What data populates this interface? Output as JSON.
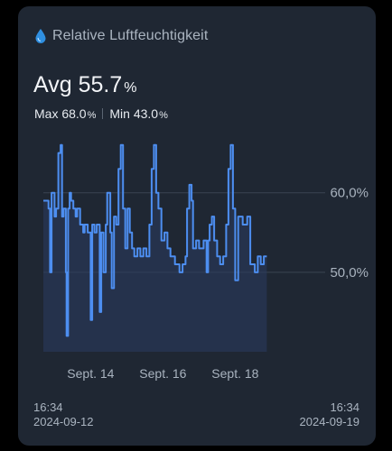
{
  "header": {
    "title": "Relative Luftfeuchtigkeit",
    "icon": "water-drop-icon",
    "icon_color": "#2f8fe0"
  },
  "summary": {
    "avg_text": "Avg 55.7",
    "unit": "%",
    "max_text": "Max 68.0",
    "min_text": "Min 43.0"
  },
  "footer": {
    "start_time": "16:34",
    "start_date": "2024-09-12",
    "end_time": "16:34",
    "end_date": "2024-09-19"
  },
  "chart_data": {
    "type": "line",
    "title": "",
    "xlabel": "",
    "ylabel": "",
    "x_range": [
      "2024-09-12T16:34",
      "2024-09-19T16:34"
    ],
    "ylim": [
      40,
      67
    ],
    "y_ticks": [
      {
        "value": 60,
        "label": "60,0%"
      },
      {
        "value": 50,
        "label": "50,0%"
      }
    ],
    "x_ticks": [
      {
        "x": "2024-09-14",
        "label": "Sept. 14"
      },
      {
        "x": "2024-09-16",
        "label": "Sept. 16"
      },
      {
        "x": "2024-09-18",
        "label": "Sept. 18"
      }
    ],
    "grid": true,
    "line_color": "#4d8ef0",
    "fill_color": "#2a3d60",
    "series": [
      {
        "points": [
          [
            "2024-09-12T16:34",
            59
          ],
          [
            "2024-09-12T18:00",
            59
          ],
          [
            "2024-09-12T20:00",
            58
          ],
          [
            "2024-09-12T21:00",
            50
          ],
          [
            "2024-09-12T22:00",
            60
          ],
          [
            "2024-09-13T00:00",
            57
          ],
          [
            "2024-09-13T01:00",
            58
          ],
          [
            "2024-09-13T02:30",
            65
          ],
          [
            "2024-09-13T04:00",
            66
          ],
          [
            "2024-09-13T05:00",
            57
          ],
          [
            "2024-09-13T06:00",
            58
          ],
          [
            "2024-09-13T07:30",
            50
          ],
          [
            "2024-09-13T08:00",
            42
          ],
          [
            "2024-09-13T09:00",
            58
          ],
          [
            "2024-09-13T10:00",
            60
          ],
          [
            "2024-09-13T11:00",
            59
          ],
          [
            "2024-09-13T12:30",
            58
          ],
          [
            "2024-09-13T14:00",
            57
          ],
          [
            "2024-09-13T15:00",
            58
          ],
          [
            "2024-09-13T17:00",
            56
          ],
          [
            "2024-09-13T19:00",
            55
          ],
          [
            "2024-09-13T20:00",
            56
          ],
          [
            "2024-09-13T22:00",
            55
          ],
          [
            "2024-09-14T00:00",
            44
          ],
          [
            "2024-09-14T01:00",
            56
          ],
          [
            "2024-09-14T02:30",
            55
          ],
          [
            "2024-09-14T04:00",
            56
          ],
          [
            "2024-09-14T06:00",
            45
          ],
          [
            "2024-09-14T07:00",
            55
          ],
          [
            "2024-09-14T08:30",
            50
          ],
          [
            "2024-09-14T10:00",
            56
          ],
          [
            "2024-09-14T11:00",
            60
          ],
          [
            "2024-09-14T13:00",
            55
          ],
          [
            "2024-09-14T14:00",
            48
          ],
          [
            "2024-09-14T15:30",
            57
          ],
          [
            "2024-09-14T17:00",
            56
          ],
          [
            "2024-09-14T18:30",
            63
          ],
          [
            "2024-09-14T20:00",
            66
          ],
          [
            "2024-09-14T21:30",
            58
          ],
          [
            "2024-09-14T23:00",
            53
          ],
          [
            "2024-09-15T00:30",
            58
          ],
          [
            "2024-09-15T02:00",
            55
          ],
          [
            "2024-09-15T03:30",
            53
          ],
          [
            "2024-09-15T05:00",
            52
          ],
          [
            "2024-09-15T07:00",
            53
          ],
          [
            "2024-09-15T09:00",
            52
          ],
          [
            "2024-09-15T11:00",
            53
          ],
          [
            "2024-09-15T13:00",
            52
          ],
          [
            "2024-09-15T15:00",
            56
          ],
          [
            "2024-09-15T16:30",
            63
          ],
          [
            "2024-09-15T18:00",
            66
          ],
          [
            "2024-09-15T19:30",
            60
          ],
          [
            "2024-09-15T21:00",
            58
          ],
          [
            "2024-09-15T23:00",
            54
          ],
          [
            "2024-09-16T01:00",
            55
          ],
          [
            "2024-09-16T03:00",
            53
          ],
          [
            "2024-09-16T05:00",
            52
          ],
          [
            "2024-09-16T08:00",
            51
          ],
          [
            "2024-09-16T11:00",
            50
          ],
          [
            "2024-09-16T13:00",
            51
          ],
          [
            "2024-09-16T15:00",
            52
          ],
          [
            "2024-09-16T16:00",
            58
          ],
          [
            "2024-09-16T17:30",
            61
          ],
          [
            "2024-09-16T19:00",
            59
          ],
          [
            "2024-09-16T20:00",
            53
          ],
          [
            "2024-09-16T22:00",
            54
          ],
          [
            "2024-09-17T00:00",
            53
          ],
          [
            "2024-09-17T03:00",
            54
          ],
          [
            "2024-09-17T05:00",
            50
          ],
          [
            "2024-09-17T06:00",
            54
          ],
          [
            "2024-09-17T07:00",
            56
          ],
          [
            "2024-09-17T08:30",
            57
          ],
          [
            "2024-09-17T10:00",
            54
          ],
          [
            "2024-09-17T12:00",
            52
          ],
          [
            "2024-09-17T14:00",
            51
          ],
          [
            "2024-09-17T16:00",
            52
          ],
          [
            "2024-09-17T18:00",
            56
          ],
          [
            "2024-09-17T19:30",
            63
          ],
          [
            "2024-09-17T21:00",
            66
          ],
          [
            "2024-09-17T22:30",
            58
          ],
          [
            "2024-09-18T00:00",
            49
          ],
          [
            "2024-09-18T02:00",
            57
          ],
          [
            "2024-09-18T05:00",
            56
          ],
          [
            "2024-09-18T08:00",
            57
          ],
          [
            "2024-09-18T10:00",
            51
          ],
          [
            "2024-09-18T13:00",
            50
          ],
          [
            "2024-09-18T15:00",
            52
          ],
          [
            "2024-09-18T17:00",
            51
          ],
          [
            "2024-09-18T19:00",
            52
          ],
          [
            "2024-09-18T21:00",
            52
          ]
        ]
      }
    ]
  }
}
